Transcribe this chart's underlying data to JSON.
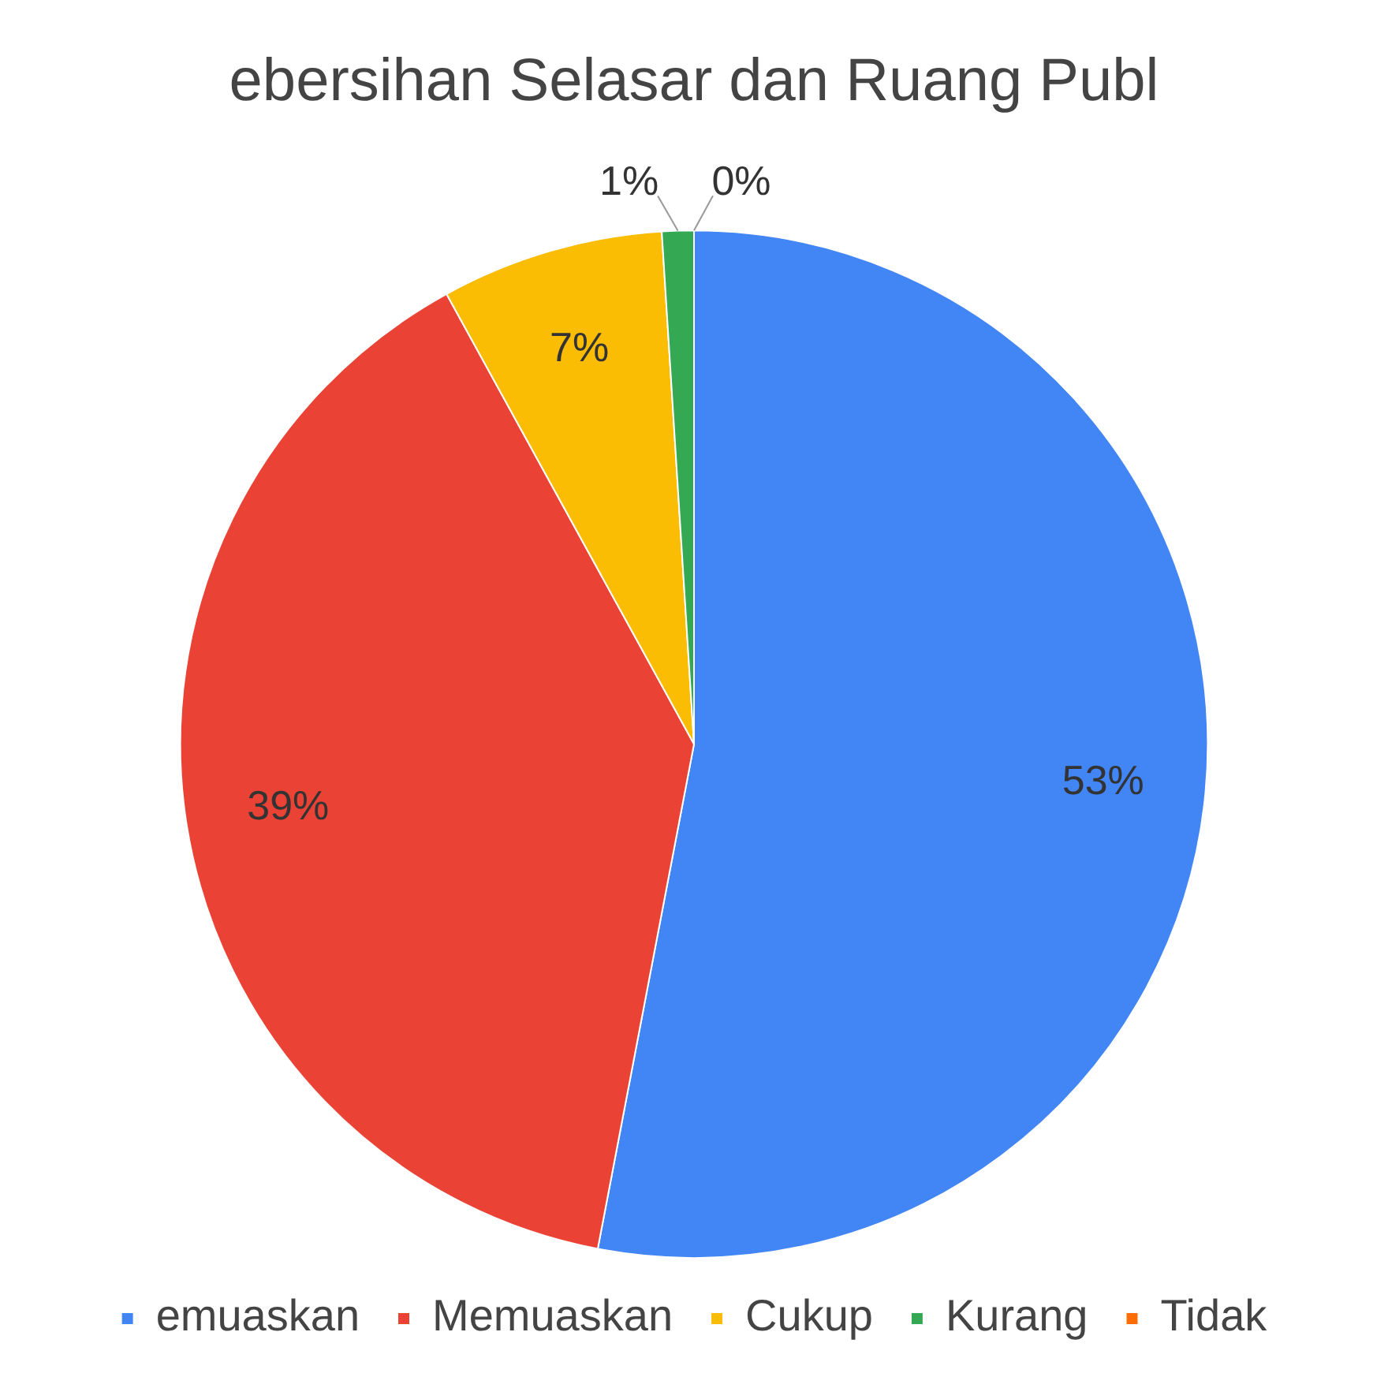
{
  "chart_data": {
    "type": "pie",
    "title": "ebersihan Selasar dan Ruang Publ",
    "categories": [
      "emuaskan",
      "Memuaskan",
      "Cukup",
      "Kurang",
      "Tidak"
    ],
    "values": [
      53,
      39,
      7,
      1,
      0
    ],
    "colors": [
      "#4285f4",
      "#ea4335",
      "#fbbc04",
      "#34a853",
      "#ff6d01"
    ],
    "value_labels": [
      "53%",
      "39%",
      "7%",
      "1%",
      "0%"
    ],
    "legend": "bottom"
  }
}
